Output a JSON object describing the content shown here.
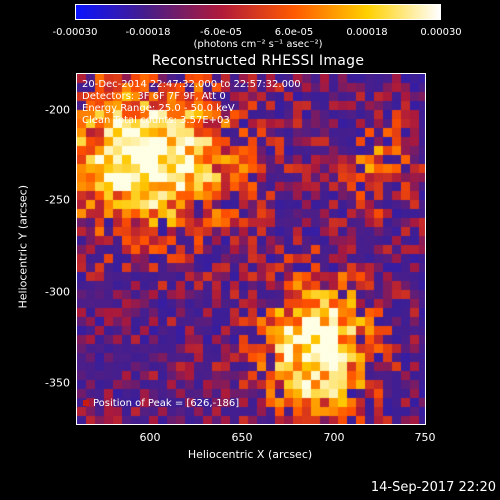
{
  "colorbar": {
    "ticks": [
      "-0.00030",
      "-0.00018",
      "-6.0e-05",
      "6.0e-05",
      "0.00018",
      "0.00030"
    ],
    "units": "(photons cm⁻² s⁻¹ asec⁻²)",
    "colors": [
      "#0a14ff",
      "#4a1d86",
      "#b01a3a",
      "#ff5a00",
      "#ffd000",
      "#ffffff"
    ]
  },
  "title": "Reconstructed RHESSI Image",
  "info": {
    "line1": "20-Dec-2014 22:47:32.000 to 22:57:32.000",
    "line2": "Detectors: 3F 6F 7F 9F, Att 0",
    "line3": "Energy Range: 25.0 - 50.0 keV",
    "line4": "Clean     Total counts: 3.57E+03"
  },
  "axes": {
    "xlabel": "Heliocentric X (arcsec)",
    "ylabel": "Heliocentric Y (arcsec)",
    "xticks": [
      "600",
      "650",
      "700",
      "750"
    ],
    "yticks": [
      "-200",
      "-250",
      "-300",
      "-350"
    ]
  },
  "peak_label": "Position of Peak = [626,-186]",
  "datestamp": "14-Sep-2017 22:20"
}
